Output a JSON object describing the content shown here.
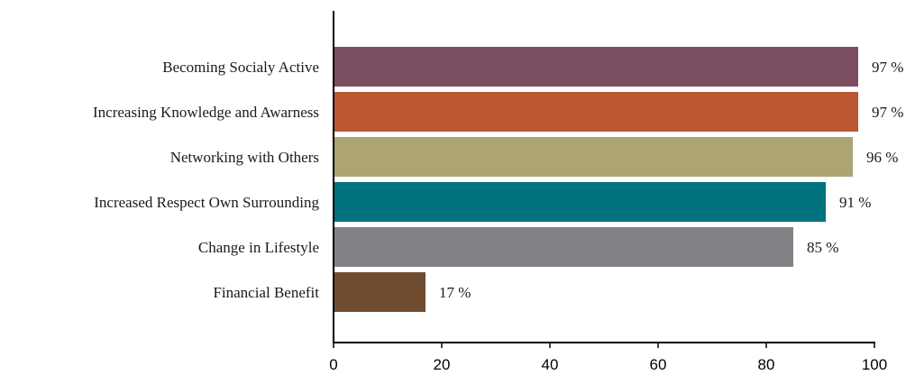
{
  "chart_data": {
    "type": "bar",
    "orientation": "horizontal",
    "categories": [
      "Becoming Socialy Active",
      "Increasing Knowledge and Awarness",
      "Networking with Others",
      "Increased Respect Own Surrounding",
      "Change in Lifestyle",
      "Financial Benefit"
    ],
    "values": [
      97,
      97,
      96,
      91,
      85,
      17
    ],
    "value_labels": [
      "97 %",
      "97 %",
      "96 %",
      "91 %",
      "85 %",
      "17 %"
    ],
    "colors": [
      "#7b4d61",
      "#bb5731",
      "#aca472",
      "#00737e",
      "#838387",
      "#6f4c30"
    ],
    "xlim": [
      0,
      100
    ],
    "x_ticks": [
      0,
      20,
      40,
      60,
      80,
      100
    ],
    "title": "",
    "xlabel": "",
    "ylabel": "",
    "grid": false,
    "legend": "none"
  }
}
